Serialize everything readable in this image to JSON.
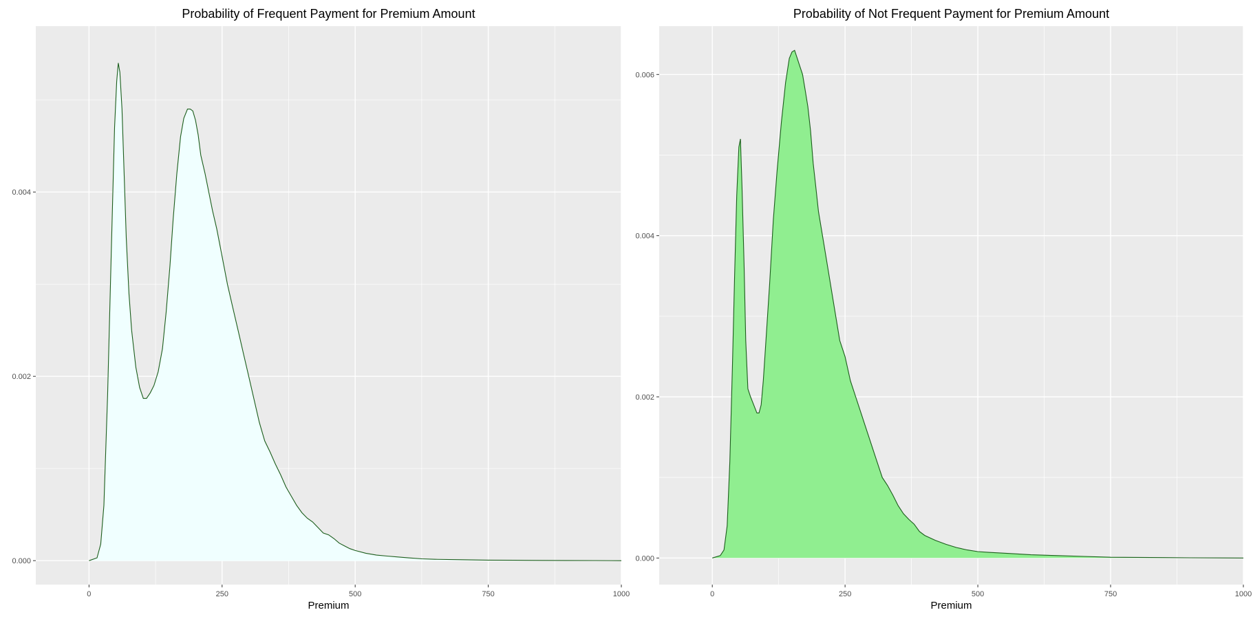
{
  "chart_data": [
    {
      "type": "area",
      "title": "Probability of Frequent Payment for Premium Amount",
      "xlabel": "Premium",
      "ylabel": "",
      "xlim": [
        -100,
        1000
      ],
      "ylim": [
        -0.00026,
        0.0058
      ],
      "x_ticks": [
        0,
        250,
        500,
        750,
        1000
      ],
      "x_tick_labels": [
        "0",
        "250",
        "500",
        "750",
        "1000"
      ],
      "y_ticks": [
        0.0,
        0.002,
        0.004
      ],
      "y_tick_labels": [
        "0.000",
        "0.002",
        "0.004"
      ],
      "grid": true,
      "fill_color": "#F0FFFF",
      "line_color": "#1a5c1a",
      "background_color": "#EBEBEB",
      "series": [
        {
          "x": [
            0,
            15,
            22,
            28,
            35,
            42,
            48,
            52,
            55,
            58,
            62,
            66,
            70,
            75,
            80,
            88,
            95,
            102,
            108,
            115,
            122,
            130,
            138,
            145,
            152,
            158,
            165,
            172,
            178,
            185,
            190,
            195,
            200,
            205,
            210,
            218,
            225,
            232,
            240,
            250,
            260,
            270,
            280,
            290,
            300,
            310,
            320,
            330,
            340,
            350,
            360,
            370,
            380,
            390,
            400,
            410,
            420,
            430,
            440,
            450,
            460,
            470,
            480,
            490,
            500,
            520,
            540,
            560,
            580,
            600,
            625,
            650,
            700,
            750,
            800,
            850,
            900,
            950,
            1000
          ],
          "y": [
            0.0,
            3e-05,
            0.00018,
            0.0006,
            0.0018,
            0.0034,
            0.0047,
            0.0052,
            0.0054,
            0.0053,
            0.0049,
            0.0042,
            0.0035,
            0.0029,
            0.0025,
            0.0021,
            0.00188,
            0.00176,
            0.00176,
            0.00182,
            0.0019,
            0.00205,
            0.0023,
            0.0027,
            0.0032,
            0.0037,
            0.0042,
            0.0046,
            0.0048,
            0.0049,
            0.0049,
            0.00488,
            0.00478,
            0.00462,
            0.0044,
            0.0042,
            0.004,
            0.0038,
            0.0036,
            0.0033,
            0.003,
            0.00275,
            0.0025,
            0.00225,
            0.002,
            0.00175,
            0.0015,
            0.0013,
            0.00118,
            0.00105,
            0.00093,
            0.0008,
            0.0007,
            0.0006,
            0.00052,
            0.00046,
            0.00042,
            0.00036,
            0.0003,
            0.00028,
            0.00024,
            0.00019,
            0.00016,
            0.00013,
            0.00011,
            8e-05,
            6e-05,
            5e-05,
            4e-05,
            3e-05,
            2e-05,
            1.5e-05,
            1e-05,
            6e-06,
            4e-06,
            3e-06,
            2e-06,
            1e-06,
            0.0
          ]
        }
      ]
    },
    {
      "type": "area",
      "title": "Probability of Not Frequent Payment for Premium Amount",
      "xlabel": "Premium",
      "ylabel": "",
      "xlim": [
        -100,
        1000
      ],
      "ylim": [
        -0.00033,
        0.0066
      ],
      "x_ticks": [
        0,
        250,
        500,
        750,
        1000
      ],
      "x_tick_labels": [
        "0",
        "250",
        "500",
        "750",
        "1000"
      ],
      "y_ticks": [
        0.0,
        0.002,
        0.004,
        0.006
      ],
      "y_tick_labels": [
        "0.000",
        "0.002",
        "0.004",
        "0.006"
      ],
      "grid": true,
      "fill_color": "#90EE90",
      "line_color": "#1a5c1a",
      "background_color": "#EBEBEB",
      "series": [
        {
          "x": [
            0,
            15,
            22,
            28,
            33,
            38,
            42,
            46,
            50,
            53,
            56,
            60,
            63,
            67,
            72,
            78,
            84,
            88,
            92,
            96,
            100,
            108,
            115,
            122,
            130,
            138,
            145,
            150,
            155,
            160,
            165,
            170,
            175,
            180,
            185,
            190,
            195,
            200,
            210,
            220,
            230,
            240,
            250,
            260,
            270,
            280,
            290,
            300,
            310,
            320,
            330,
            340,
            350,
            360,
            370,
            380,
            390,
            400,
            420,
            440,
            460,
            480,
            500,
            520,
            550,
            600,
            650,
            700,
            750,
            800,
            850,
            900,
            1000
          ],
          "y": [
            0.0,
            3e-05,
            0.0001,
            0.0004,
            0.0012,
            0.0024,
            0.0035,
            0.0045,
            0.0051,
            0.0052,
            0.0046,
            0.0036,
            0.0027,
            0.0021,
            0.002,
            0.0019,
            0.0018,
            0.0018,
            0.0019,
            0.0022,
            0.0026,
            0.0034,
            0.0042,
            0.0048,
            0.0054,
            0.0059,
            0.0062,
            0.00628,
            0.0063,
            0.0062,
            0.0061,
            0.006,
            0.0058,
            0.0056,
            0.0053,
            0.0049,
            0.0046,
            0.0043,
            0.0039,
            0.0035,
            0.0031,
            0.0027,
            0.0025,
            0.0022,
            0.002,
            0.0018,
            0.0016,
            0.0014,
            0.0012,
            0.001,
            0.0009,
            0.00078,
            0.00065,
            0.00055,
            0.00048,
            0.00042,
            0.00033,
            0.00028,
            0.00022,
            0.00017,
            0.00013,
            0.0001,
            8e-05,
            7e-05,
            6e-05,
            4e-05,
            3e-05,
            2e-05,
            1e-05,
            8e-06,
            5e-06,
            3e-06,
            0.0
          ]
        }
      ]
    }
  ]
}
